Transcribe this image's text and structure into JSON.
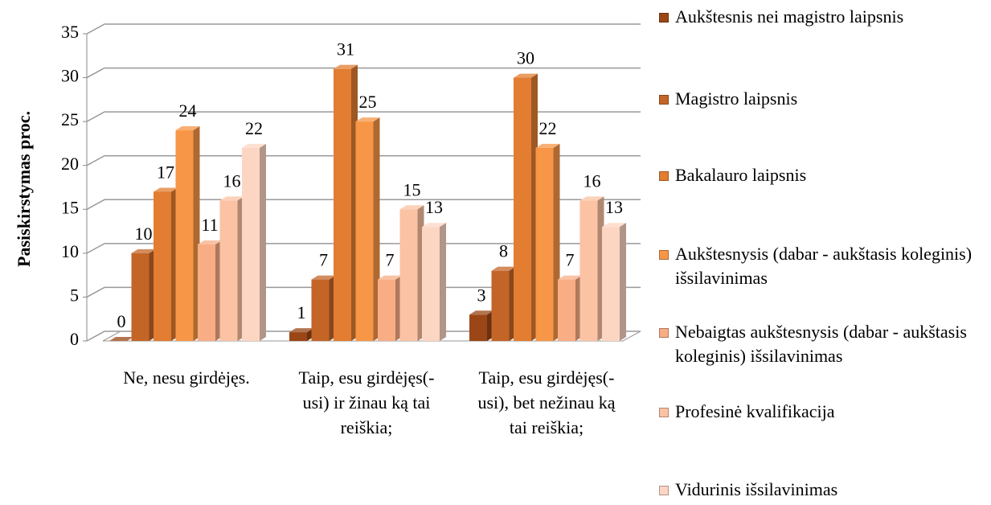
{
  "chart_data": {
    "type": "bar",
    "y_label": "Pasiskirstymas proc.",
    "categories": [
      "Ne, nesu girdėjęs.",
      "Taip, esu girdėjęs(-usi) ir žinau ką tai reiškia;",
      "Taip, esu girdėjęs(-usi), bet nežinau ką tai reiškia;"
    ],
    "series": [
      {
        "name": "Aukštesnis nei magistro laipsnis",
        "color": "#9a4616",
        "values": [
          0,
          1,
          3
        ]
      },
      {
        "name": "Magistro laipsnis",
        "color": "#c46528",
        "values": [
          10,
          7,
          8
        ]
      },
      {
        "name": "Bakalauro laipsnis",
        "color": "#e27d32",
        "values": [
          17,
          31,
          30
        ]
      },
      {
        "name": "Aukštesnysis (dabar - aukštasis koleginis) išsilavinimas",
        "color": "#f79646",
        "values": [
          24,
          25,
          22
        ]
      },
      {
        "name": "Nebaigtas aukštesnysis (dabar - aukštasis koleginis) išsilavinimas",
        "color": "#f8ad85",
        "values": [
          11,
          7,
          7
        ]
      },
      {
        "name": "Profesinė kvalifikacija",
        "color": "#fbc2a3",
        "values": [
          16,
          15,
          16
        ]
      },
      {
        "name": "Vidurinis išsilavinimas",
        "color": "#fcd6c2",
        "values": [
          22,
          13,
          13
        ]
      }
    ],
    "ylim": [
      0,
      35
    ],
    "yticks": [
      0,
      5,
      10,
      15,
      20,
      25,
      30,
      35
    ],
    "grid": true
  }
}
